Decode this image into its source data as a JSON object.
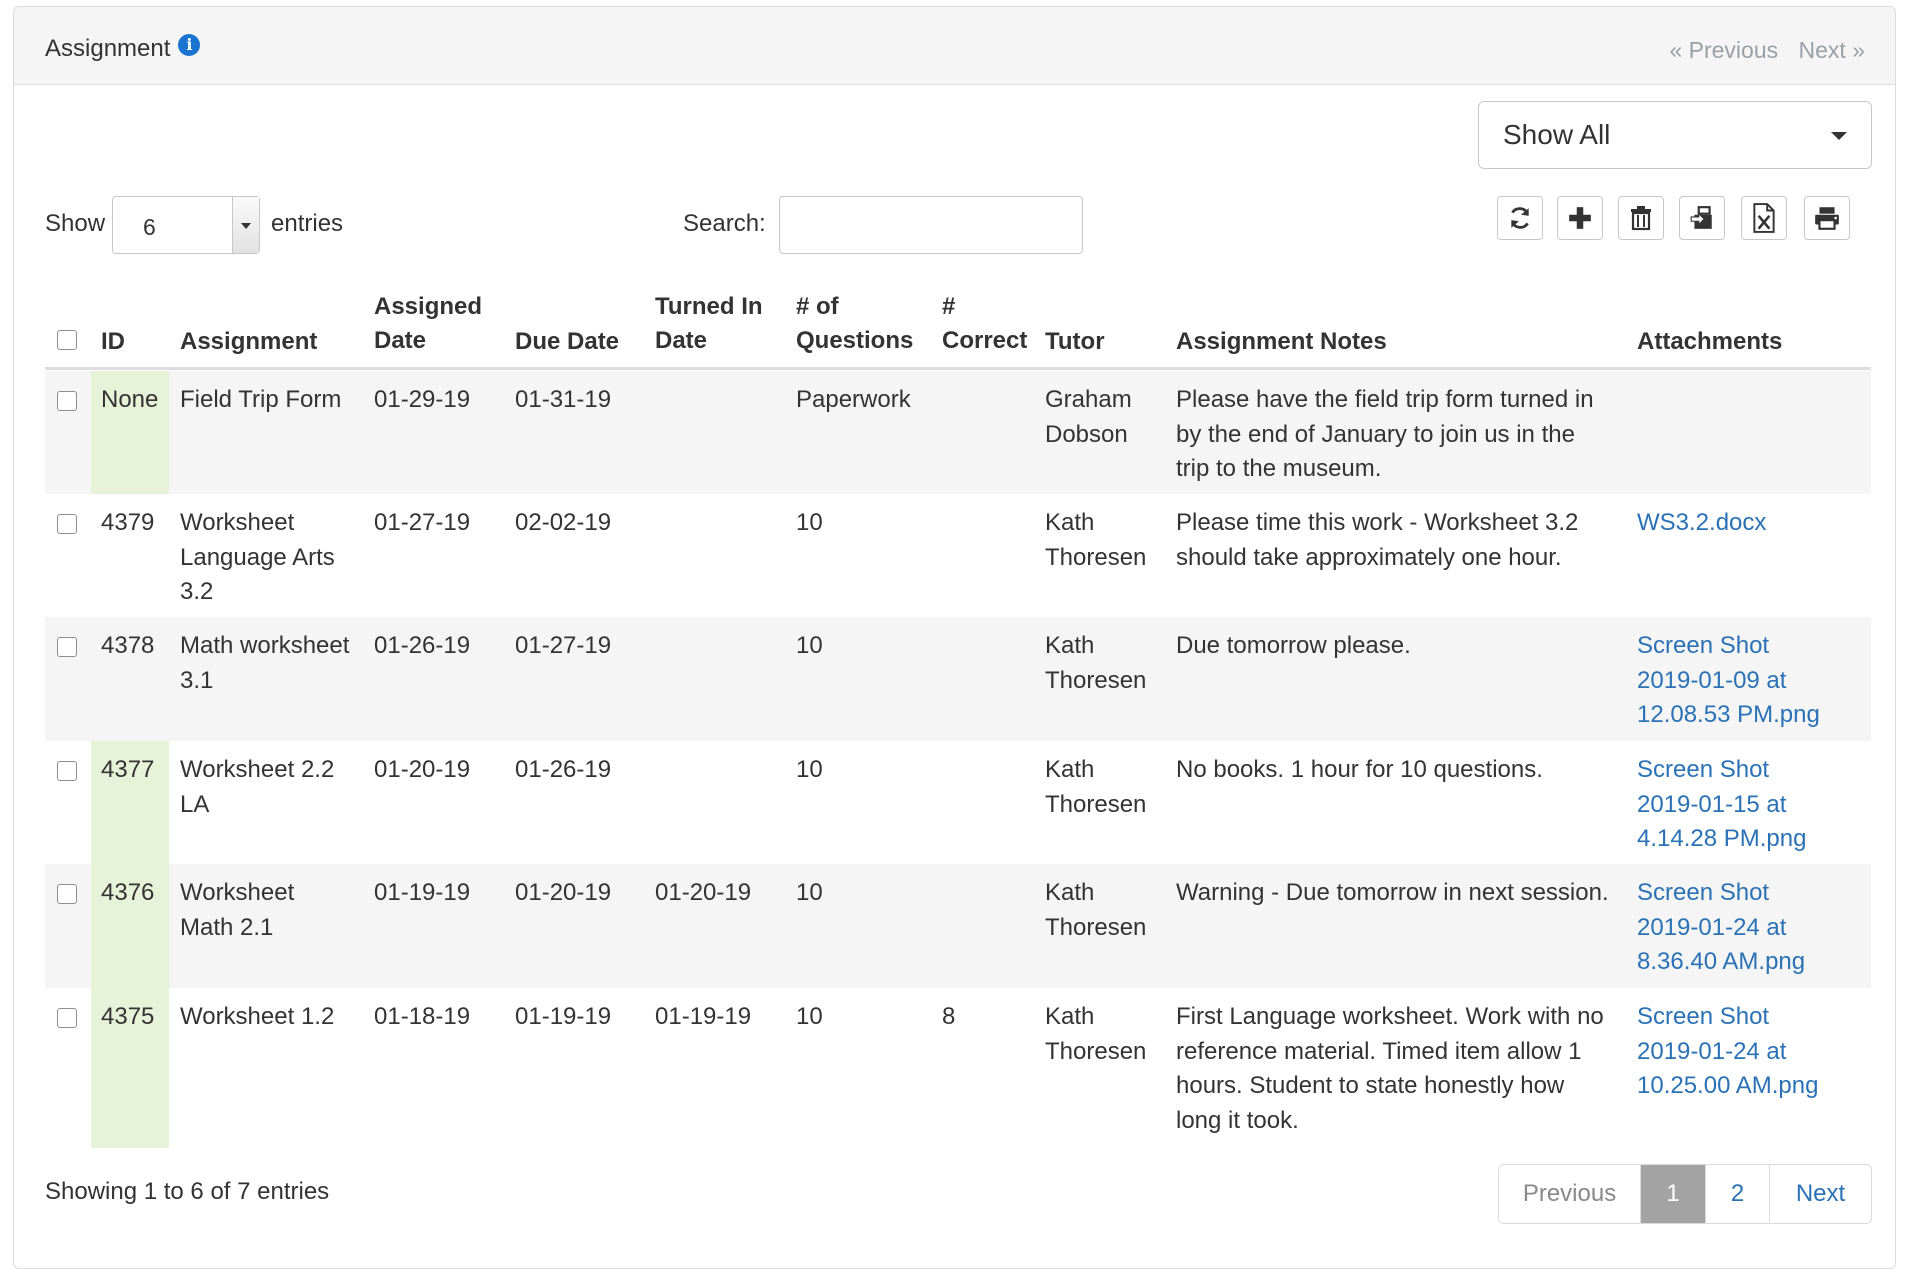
{
  "panel": {
    "title": "Assignment",
    "info_icon": "info-circle-icon",
    "pager_prev": "« Previous",
    "pager_next": "Next »"
  },
  "filter": {
    "selected": "Show All"
  },
  "length": {
    "show_label": "Show",
    "value": "6",
    "entries_label": "entries"
  },
  "search": {
    "label": "Search:",
    "value": ""
  },
  "toolbar": [
    "refresh-icon",
    "add-icon",
    "trash-icon",
    "import-icon",
    "excel-export-icon",
    "print-icon"
  ],
  "table": {
    "headers": {
      "id": "ID",
      "assignment": "Assignment",
      "assigned_date_1": "Assigned",
      "assigned_date_2": "Date",
      "due_date": "Due Date",
      "turned_in_1": "Turned In",
      "turned_in_2": "Date",
      "num_q_1": "# of",
      "num_q_2": "Questions",
      "correct_1": "#",
      "correct_2": "Correct",
      "tutor": "Tutor",
      "notes": "Assignment Notes",
      "attachments": "Attachments"
    },
    "rows": [
      {
        "id": "None",
        "assignment": [
          "Field Trip Form"
        ],
        "assigned": "01-29-19",
        "due": "01-31-19",
        "turned_in": "",
        "questions": "Paperwork",
        "correct": "",
        "tutor": [
          "Graham",
          "Dobson"
        ],
        "notes": [
          "Please have the field trip form turned in",
          "by the end of January to join us in the",
          "trip to the museum."
        ],
        "attachments": []
      },
      {
        "id": "4379",
        "assignment": [
          "Worksheet",
          "Language Arts",
          "3.2"
        ],
        "assigned": "01-27-19",
        "due": "02-02-19",
        "turned_in": "",
        "questions": "10",
        "correct": "",
        "tutor": [
          "Kath",
          "Thoresen"
        ],
        "notes": [
          "Please time this work - Worksheet 3.2",
          "should take approximately one hour."
        ],
        "attachments": [
          "WS3.2.docx"
        ]
      },
      {
        "id": "4378",
        "assignment": [
          "Math worksheet",
          "3.1"
        ],
        "assigned": "01-26-19",
        "due": "01-27-19",
        "turned_in": "",
        "questions": "10",
        "correct": "",
        "tutor": [
          "Kath",
          "Thoresen"
        ],
        "notes": [
          "Due tomorrow please."
        ],
        "attachments": [
          "Screen Shot",
          "2019-01-09 at",
          "12.08.53 PM.png"
        ]
      },
      {
        "id": "4377",
        "assignment": [
          "Worksheet 2.2",
          "LA"
        ],
        "assigned": "01-20-19",
        "due": "01-26-19",
        "turned_in": "",
        "questions": "10",
        "correct": "",
        "tutor": [
          "Kath",
          "Thoresen"
        ],
        "notes": [
          "No books. 1 hour for 10 questions."
        ],
        "attachments": [
          "Screen Shot",
          "2019-01-15 at",
          "4.14.28 PM.png"
        ]
      },
      {
        "id": "4376",
        "assignment": [
          "Worksheet",
          "Math 2.1"
        ],
        "assigned": "01-19-19",
        "due": "01-20-19",
        "turned_in": "01-20-19",
        "questions": "10",
        "correct": "",
        "tutor": [
          "Kath",
          "Thoresen"
        ],
        "notes": [
          "Warning - Due tomorrow in next session."
        ],
        "attachments": [
          "Screen Shot",
          "2019-01-24 at",
          "8.36.40 AM.png"
        ]
      },
      {
        "id": "4375",
        "assignment": [
          "Worksheet 1.2"
        ],
        "assigned": "01-18-19",
        "due": "01-19-19",
        "turned_in": "01-19-19",
        "questions": "10",
        "correct": "8",
        "tutor": [
          "Kath",
          "Thoresen"
        ],
        "notes": [
          "First Language worksheet. Work with no",
          "reference material. Timed item allow 1",
          "hours. Student to state honestly how",
          "long it took."
        ],
        "attachments": [
          "Screen Shot",
          "2019-01-24 at",
          "10.25.00 AM.png"
        ]
      }
    ]
  },
  "footer": {
    "info": "Showing 1 to 6 of 7 entries",
    "previous": "Previous",
    "pages": [
      "1",
      "2"
    ],
    "current_page": "1",
    "next": "Next"
  },
  "colors": {
    "link": "#2a72b5",
    "id_highlight": "#e7f3d9",
    "active_page": "#a3a3a3",
    "striped_row": "#f5f5f5"
  }
}
